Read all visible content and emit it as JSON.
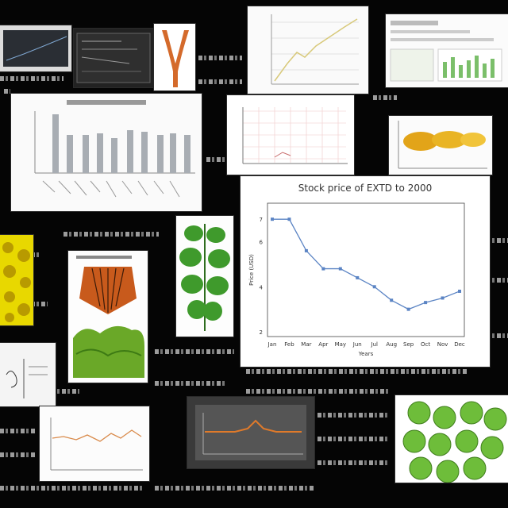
{
  "chart_data": {
    "type": "line",
    "title": "Stock price of EXTD to 2000",
    "xlabel": "Years",
    "ylabel": "Price (USD)",
    "x": [
      "Jan",
      "Feb",
      "Mar",
      "Apr",
      "May",
      "Jun",
      "Jul",
      "Aug",
      "Sep",
      "Oct",
      "Nov",
      "Dec"
    ],
    "y": [
      7.0,
      7.0,
      5.6,
      4.8,
      4.8,
      4.4,
      4.0,
      3.4,
      3.0,
      3.3,
      3.5,
      3.8
    ],
    "yticks": [
      "2",
      "4",
      "6",
      "7"
    ],
    "ylim": [
      2,
      7.5
    ],
    "color": "#5b84c4",
    "grid": false
  }
}
